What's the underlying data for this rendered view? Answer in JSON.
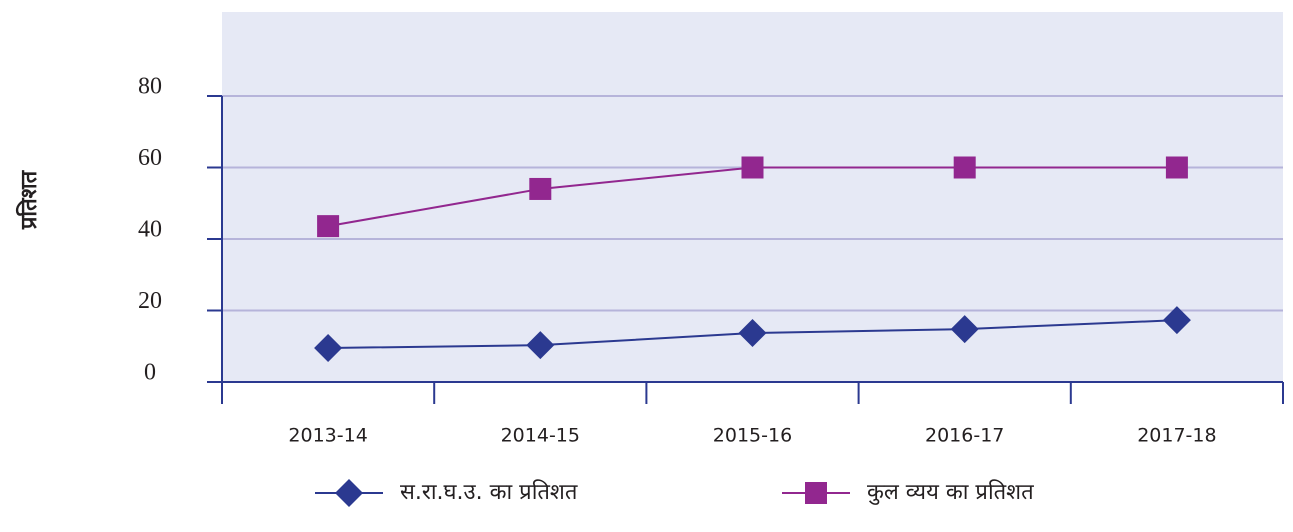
{
  "chart_data": {
    "type": "line",
    "y_label": "प्रतिशत",
    "categories": [
      "2013-14",
      "2014-15",
      "2015-16",
      "2016-17",
      "2017-18"
    ],
    "series": [
      {
        "name": "स.रा.घ.उ. का प्रतिशत",
        "color": "#2b3990",
        "marker": "diamond",
        "values": [
          9.5,
          10.3,
          13.7,
          14.8,
          17.3
        ]
      },
      {
        "name": "कुल व्यय का प्रतिशत",
        "color": "#92278f",
        "marker": "square",
        "values": [
          43.6,
          54,
          60,
          60,
          60
        ]
      }
    ],
    "ylim": [
      0,
      80
    ],
    "yticks": [
      0,
      20,
      40,
      60,
      80
    ],
    "grid": true
  }
}
